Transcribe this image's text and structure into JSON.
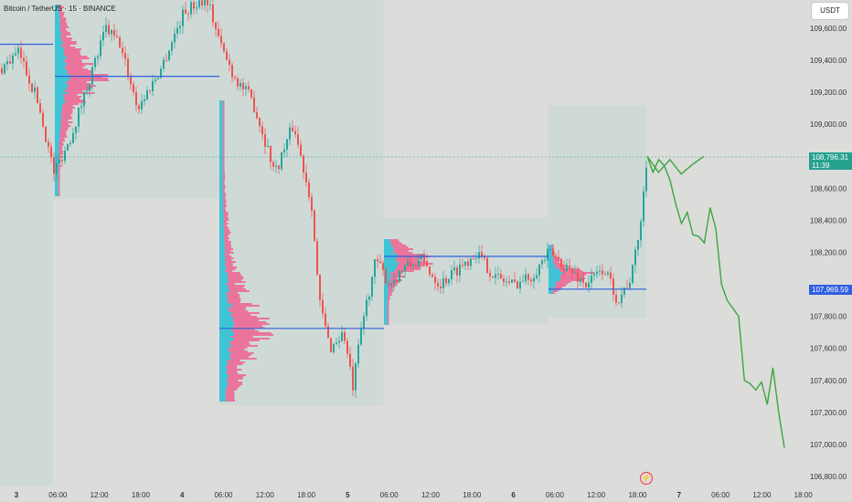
{
  "header": {
    "symbol_title": "Bitcoin / TetherUS · 15 · BINANCE",
    "currency_button": "USDT"
  },
  "price_tags": {
    "current_price": "108,796.31",
    "countdown": "11:39",
    "poc_price": "107,969.59"
  },
  "colors": {
    "background": "#dcdcda",
    "up_candle": "#26a69a",
    "down_candle": "#ef5350",
    "profile_fill": "#3fc4d6",
    "profile_highlight": "#f05a8c",
    "poc_line": "#2f5fe0",
    "projection_line": "#3aa640",
    "value_area": "#c8d9d6",
    "current_price_tag": "#26a18f"
  },
  "chart_data": {
    "type": "candlestick",
    "y_axis": {
      "range": [
        106750,
        109800
      ],
      "ticks": [
        "109,600.00",
        "109,400.00",
        "109,200.00",
        "109,000.00",
        "108,600.00",
        "108,400.00",
        "108,200.00",
        "107,800.00",
        "107,600.00",
        "107,400.00",
        "107,200.00",
        "107,000.00",
        "106,800.00"
      ]
    },
    "x_axis": {
      "ticks": [
        "3",
        "06:00",
        "12:00",
        "18:00",
        "4",
        "06:00",
        "12:00",
        "18:00",
        "5",
        "06:00",
        "12:00",
        "18:00",
        "6",
        "06:00",
        "12:00",
        "18:00",
        "7",
        "06:00",
        "12:00",
        "18:00"
      ]
    },
    "current_price": 108796.31,
    "session_pocs": [
      109500,
      109300,
      107725,
      108175,
      107970
    ],
    "projection_path": [
      [
        108800,
        108700,
        108780,
        108690,
        108750,
        108800
      ],
      [
        108800,
        108700,
        108780,
        108740,
        108650,
        108500,
        108380,
        108450,
        108310,
        108300,
        108260,
        108480,
        108350,
        108000,
        107900,
        107850,
        107800,
        107400,
        107380,
        107340,
        107390,
        107250,
        107480,
        107200,
        106980
      ]
    ]
  }
}
